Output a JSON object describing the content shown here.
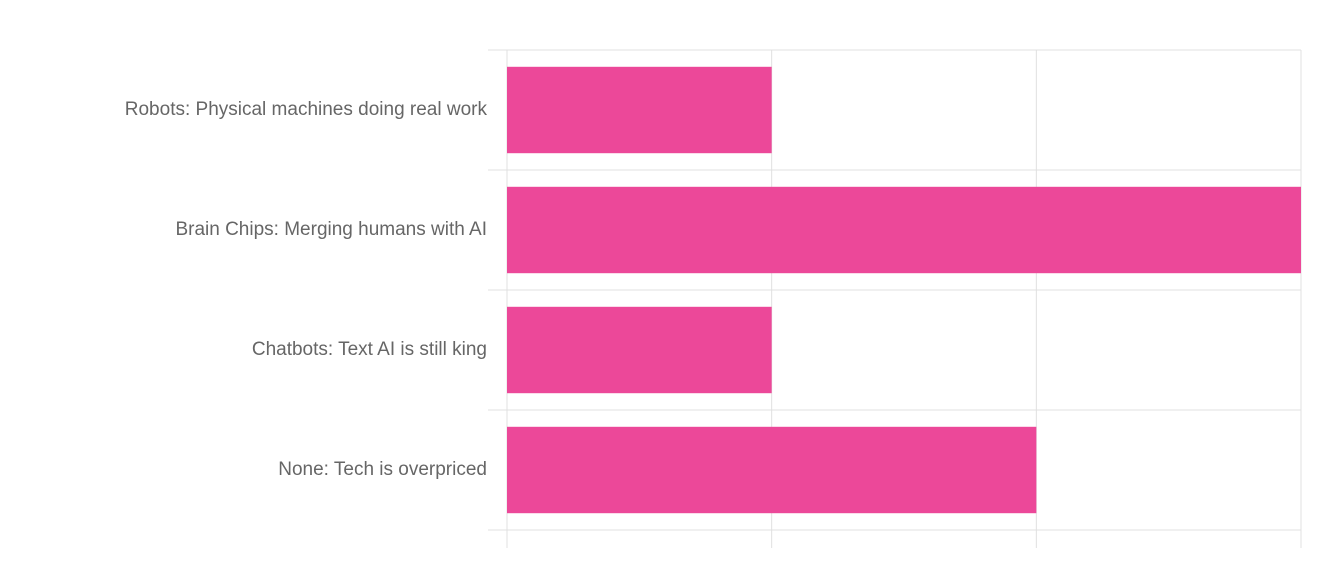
{
  "chart_data": {
    "type": "hbar",
    "categories": [
      "Robots: Physical machines doing real work",
      "Brain Chips: Merging humans with AI",
      "Chatbots: Text AI is still king",
      "None: Tech is overpriced"
    ],
    "values": [
      1,
      3,
      1,
      2
    ],
    "color": "#ec4899",
    "xlim": [
      0,
      3
    ],
    "xticks": [
      0,
      1,
      2,
      3
    ],
    "grid": true
  }
}
